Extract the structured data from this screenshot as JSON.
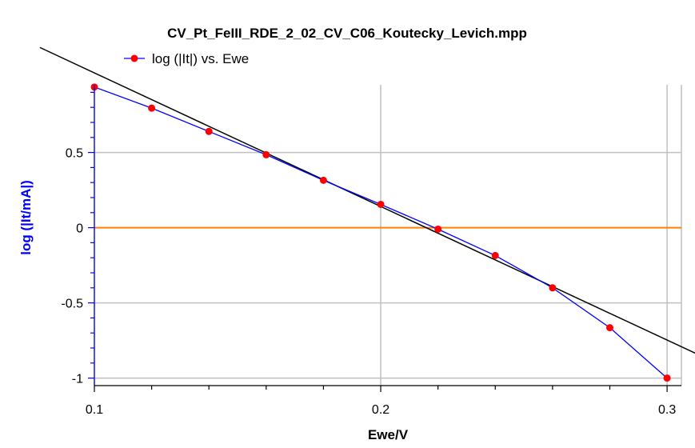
{
  "chart_data": {
    "type": "line",
    "title": "CV_Pt_FeIII_RDE_2_02_CV_C06_Koutecky_Levich.mpp",
    "xlabel": "Ewe/V",
    "ylabel": "log (|It/mA|)",
    "xlim": [
      0.1,
      0.305
    ],
    "ylim": [
      -1.05,
      0.95
    ],
    "x_ticks": [
      "0.1",
      "0.2",
      "0.3"
    ],
    "y_ticks": [
      "0.5",
      "0",
      "-0.5",
      "-1"
    ],
    "x_tick_values": [
      0.1,
      0.2,
      0.3
    ],
    "y_tick_values": [
      0.5,
      0,
      -0.5,
      -1
    ],
    "grid": true,
    "legend_position": "top-left",
    "series": [
      {
        "name": "log (|It|) vs. Ewe",
        "color": "#0000ff",
        "marker_color": "#ff0000",
        "x": [
          0.1,
          0.12,
          0.14,
          0.16,
          0.18,
          0.2,
          0.22,
          0.24,
          0.26,
          0.28,
          0.3
        ],
        "y": [
          0.935,
          0.795,
          0.64,
          0.485,
          0.315,
          0.155,
          -0.01,
          -0.185,
          -0.4,
          -0.665,
          -1.0
        ]
      }
    ],
    "fit_line": {
      "color": "#000000",
      "x": [
        0.081,
        0.31
      ],
      "y": [
        1.198,
        -0.836
      ]
    },
    "zero_line": {
      "color": "#ff8000",
      "y": 0
    },
    "ylabel_color": "#0000ff",
    "axis_color": "#0000ff",
    "grid_color": "#c0c0c0"
  }
}
